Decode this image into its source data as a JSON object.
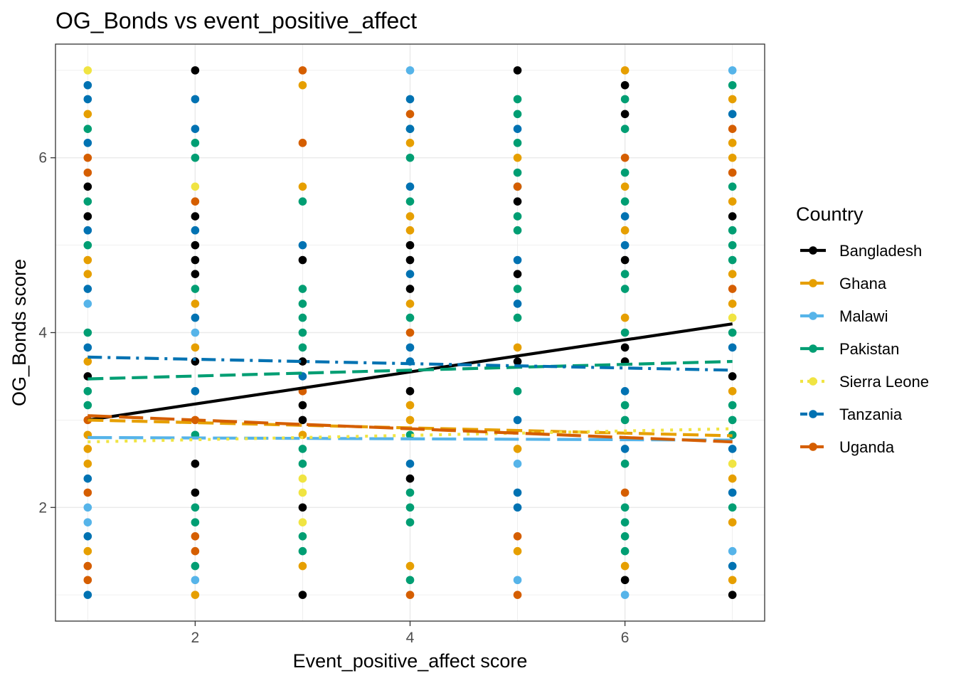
{
  "chart_data": {
    "type": "scatter",
    "title": "OG_Bonds vs event_positive_affect",
    "xlabel": "Event_positive_affect score",
    "ylabel": "OG_Bonds score",
    "xlim": [
      0.7,
      7.3
    ],
    "ylim": [
      0.7,
      7.3
    ],
    "x_ticks": [
      2,
      4,
      6
    ],
    "y_ticks": [
      2,
      4,
      6
    ],
    "grid": true,
    "legend": {
      "title": "Country",
      "position": "right"
    },
    "series": [
      {
        "name": "Bangladesh",
        "color": "#000000",
        "line_dash": "solid",
        "trend": [
          [
            1,
            3.0
          ],
          [
            7,
            4.1
          ]
        ],
        "points": [
          [
            1,
            5.67
          ],
          [
            1,
            5.33
          ],
          [
            1,
            3.5
          ],
          [
            2,
            7
          ],
          [
            2,
            5.33
          ],
          [
            2,
            5
          ],
          [
            2,
            4.83
          ],
          [
            2,
            4.67
          ],
          [
            2,
            3.67
          ],
          [
            2,
            2.5
          ],
          [
            2,
            2.17
          ],
          [
            3,
            4.83
          ],
          [
            3,
            3.67
          ],
          [
            3,
            3.17
          ],
          [
            3,
            3
          ],
          [
            3,
            2
          ],
          [
            3,
            1
          ],
          [
            4,
            5
          ],
          [
            4,
            4.83
          ],
          [
            4,
            4.5
          ],
          [
            4,
            3.33
          ],
          [
            4,
            2.33
          ],
          [
            5,
            7
          ],
          [
            5,
            5.5
          ],
          [
            5,
            4.67
          ],
          [
            5,
            3.67
          ],
          [
            6,
            6.83
          ],
          [
            6,
            6.5
          ],
          [
            6,
            4.83
          ],
          [
            6,
            3.83
          ],
          [
            6,
            3.67
          ],
          [
            6,
            1.17
          ],
          [
            7,
            5.33
          ],
          [
            7,
            3.5
          ],
          [
            7,
            1
          ]
        ]
      },
      {
        "name": "Ghana",
        "color": "#E69F00",
        "line_dash": "dashed",
        "trend": [
          [
            1,
            3.0
          ],
          [
            7,
            2.82
          ]
        ],
        "points": [
          [
            1,
            6.5
          ],
          [
            1,
            4.83
          ],
          [
            1,
            4.67
          ],
          [
            1,
            3.67
          ],
          [
            1,
            2.83
          ],
          [
            1,
            2.67
          ],
          [
            1,
            2.5
          ],
          [
            1,
            1.5
          ],
          [
            2,
            4.33
          ],
          [
            2,
            3.83
          ],
          [
            2,
            1
          ],
          [
            3,
            6.83
          ],
          [
            3,
            5.67
          ],
          [
            3,
            2.83
          ],
          [
            3,
            1.33
          ],
          [
            4,
            6.17
          ],
          [
            4,
            5.33
          ],
          [
            4,
            5.17
          ],
          [
            4,
            4.33
          ],
          [
            4,
            3.17
          ],
          [
            4,
            3
          ],
          [
            4,
            1.33
          ],
          [
            5,
            6
          ],
          [
            5,
            3.83
          ],
          [
            5,
            2.67
          ],
          [
            5,
            1.5
          ],
          [
            6,
            7
          ],
          [
            6,
            5.67
          ],
          [
            6,
            5.17
          ],
          [
            6,
            4.17
          ],
          [
            6,
            1.33
          ],
          [
            7,
            6.67
          ],
          [
            7,
            6.17
          ],
          [
            7,
            6
          ],
          [
            7,
            5.5
          ],
          [
            7,
            4.67
          ],
          [
            7,
            4.33
          ],
          [
            7,
            3.33
          ],
          [
            7,
            2.33
          ],
          [
            7,
            1.83
          ],
          [
            7,
            1.17
          ]
        ]
      },
      {
        "name": "Malawi",
        "color": "#56B4E9",
        "line_dash": "longdash",
        "trend": [
          [
            1,
            2.8
          ],
          [
            7,
            2.77
          ]
        ],
        "points": [
          [
            1,
            4.33
          ],
          [
            1,
            2
          ],
          [
            1,
            1.83
          ],
          [
            2,
            4
          ],
          [
            2,
            1.17
          ],
          [
            4,
            7
          ],
          [
            5,
            2.5
          ],
          [
            5,
            1.17
          ],
          [
            6,
            1
          ],
          [
            7,
            7
          ],
          [
            7,
            1.5
          ]
        ]
      },
      {
        "name": "Pakistan",
        "color": "#009E73",
        "line_dash": "dashed",
        "trend": [
          [
            1,
            3.47
          ],
          [
            7,
            3.67
          ]
        ],
        "points": [
          [
            1,
            6.33
          ],
          [
            1,
            5.5
          ],
          [
            1,
            5
          ],
          [
            1,
            4
          ],
          [
            1,
            3.33
          ],
          [
            1,
            3.17
          ],
          [
            2,
            6.17
          ],
          [
            2,
            6
          ],
          [
            2,
            4.5
          ],
          [
            2,
            2.83
          ],
          [
            2,
            2
          ],
          [
            2,
            1.83
          ],
          [
            2,
            1.33
          ],
          [
            3,
            5.5
          ],
          [
            3,
            4.5
          ],
          [
            3,
            4.33
          ],
          [
            3,
            4.17
          ],
          [
            3,
            4
          ],
          [
            3,
            3.83
          ],
          [
            3,
            2.67
          ],
          [
            3,
            2.5
          ],
          [
            3,
            1.67
          ],
          [
            3,
            1.5
          ],
          [
            4,
            6.33
          ],
          [
            4,
            6
          ],
          [
            4,
            5.5
          ],
          [
            4,
            4.17
          ],
          [
            4,
            2.83
          ],
          [
            4,
            2.17
          ],
          [
            4,
            2
          ],
          [
            4,
            1.83
          ],
          [
            4,
            1.17
          ],
          [
            5,
            6.67
          ],
          [
            5,
            6.5
          ],
          [
            5,
            6.17
          ],
          [
            5,
            5.83
          ],
          [
            5,
            5.67
          ],
          [
            5,
            5.33
          ],
          [
            5,
            5.17
          ],
          [
            5,
            4.5
          ],
          [
            5,
            4.17
          ],
          [
            5,
            3.33
          ],
          [
            6,
            6.67
          ],
          [
            6,
            6.33
          ],
          [
            6,
            5.83
          ],
          [
            6,
            5.5
          ],
          [
            6,
            4.67
          ],
          [
            6,
            4.5
          ],
          [
            6,
            4
          ],
          [
            6,
            3.17
          ],
          [
            6,
            3
          ],
          [
            6,
            2.5
          ],
          [
            6,
            2
          ],
          [
            6,
            1.83
          ],
          [
            6,
            1.67
          ],
          [
            6,
            1.5
          ],
          [
            7,
            6.83
          ],
          [
            7,
            5.67
          ],
          [
            7,
            5.17
          ],
          [
            7,
            5
          ],
          [
            7,
            4.83
          ],
          [
            7,
            4
          ],
          [
            7,
            3.17
          ],
          [
            7,
            3
          ],
          [
            7,
            2.83
          ],
          [
            7,
            2
          ]
        ]
      },
      {
        "name": "Sierra Leone",
        "color": "#F0E442",
        "line_dash": "dotted",
        "trend": [
          [
            1,
            2.75
          ],
          [
            7,
            2.9
          ]
        ],
        "points": [
          [
            1,
            7
          ],
          [
            2,
            5.67
          ],
          [
            3,
            2.33
          ],
          [
            3,
            2.17
          ],
          [
            3,
            1.83
          ],
          [
            7,
            4.17
          ],
          [
            7,
            2.5
          ]
        ]
      },
      {
        "name": "Tanzania",
        "color": "#0072B2",
        "line_dash": "dotdash",
        "trend": [
          [
            1,
            3.72
          ],
          [
            7,
            3.57
          ]
        ],
        "points": [
          [
            1,
            6.83
          ],
          [
            1,
            6.67
          ],
          [
            1,
            6.17
          ],
          [
            1,
            5.17
          ],
          [
            1,
            4.5
          ],
          [
            1,
            3.83
          ],
          [
            1,
            2.33
          ],
          [
            1,
            1.67
          ],
          [
            1,
            1
          ],
          [
            2,
            6.67
          ],
          [
            2,
            6.33
          ],
          [
            2,
            5.17
          ],
          [
            2,
            4.17
          ],
          [
            2,
            3.33
          ],
          [
            3,
            5
          ],
          [
            3,
            3.5
          ],
          [
            4,
            6.67
          ],
          [
            4,
            6.33
          ],
          [
            4,
            5.67
          ],
          [
            4,
            4.67
          ],
          [
            4,
            3.83
          ],
          [
            4,
            3.67
          ],
          [
            4,
            2.5
          ],
          [
            5,
            6.33
          ],
          [
            5,
            4.83
          ],
          [
            5,
            4.33
          ],
          [
            5,
            3
          ],
          [
            5,
            2.17
          ],
          [
            5,
            2
          ],
          [
            6,
            5.33
          ],
          [
            6,
            5
          ],
          [
            6,
            3.33
          ],
          [
            6,
            2.67
          ],
          [
            7,
            6.5
          ],
          [
            7,
            3.83
          ],
          [
            7,
            2.67
          ],
          [
            7,
            2.17
          ],
          [
            7,
            1.33
          ]
        ]
      },
      {
        "name": "Uganda",
        "color": "#D55E00",
        "line_dash": "longdash",
        "trend": [
          [
            1,
            3.05
          ],
          [
            7,
            2.75
          ]
        ],
        "points": [
          [
            1,
            6
          ],
          [
            1,
            5.83
          ],
          [
            1,
            3
          ],
          [
            1,
            2.17
          ],
          [
            1,
            1.33
          ],
          [
            1,
            1.17
          ],
          [
            2,
            5.5
          ],
          [
            2,
            3
          ],
          [
            2,
            1.67
          ],
          [
            2,
            1.5
          ],
          [
            3,
            7
          ],
          [
            3,
            6.17
          ],
          [
            3,
            3.33
          ],
          [
            4,
            6.5
          ],
          [
            4,
            4
          ],
          [
            4,
            1
          ],
          [
            5,
            5.67
          ],
          [
            5,
            1.67
          ],
          [
            5,
            1
          ],
          [
            6,
            6
          ],
          [
            6,
            2.17
          ],
          [
            7,
            6.33
          ],
          [
            7,
            5.83
          ],
          [
            7,
            4.5
          ]
        ]
      }
    ]
  }
}
